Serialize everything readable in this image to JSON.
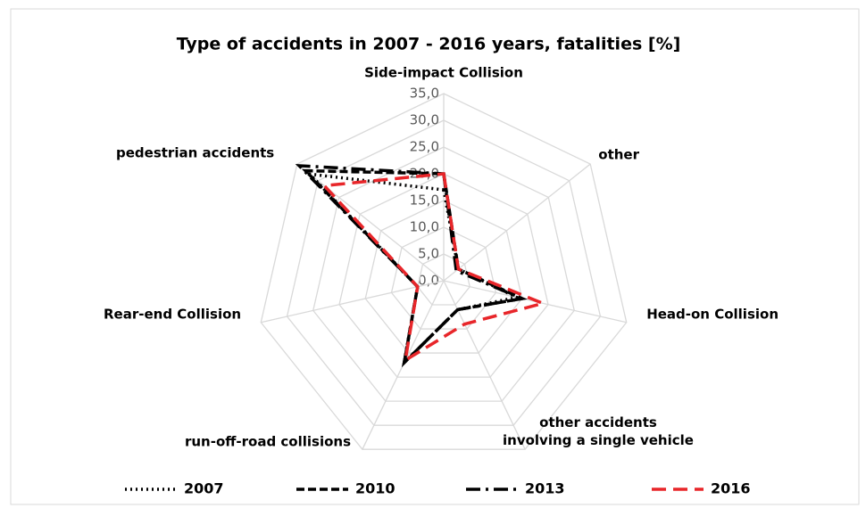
{
  "chart_data": {
    "type": "radar",
    "title": "Type of accidents in 2007 - 2016 years, fatalities [%]",
    "categories": [
      "Side-impact Collision",
      "other",
      "Head-on Collision",
      "other accidents involving a single vehicle",
      "run-off-road collisions",
      "Rear-end Collision",
      "pedestrian accidents"
    ],
    "ylim": [
      0,
      35
    ],
    "yticks": [
      {
        "value": 0,
        "label": "0,0"
      },
      {
        "value": 5,
        "label": "5,0"
      },
      {
        "value": 10,
        "label": "10,0"
      },
      {
        "value": 15,
        "label": "15,0"
      },
      {
        "value": 20,
        "label": "20,0"
      },
      {
        "value": 25,
        "label": "25,0"
      },
      {
        "value": 30,
        "label": "30,0"
      },
      {
        "value": 35,
        "label": "35,0"
      }
    ],
    "grid": true,
    "legend": "bottom",
    "series": [
      {
        "name": "2007",
        "color": "#000000",
        "dash": "dotted",
        "values": [
          17,
          3.5,
          14,
          6,
          17,
          5,
          32
        ]
      },
      {
        "name": "2010",
        "color": "#000000",
        "dash": "dashed",
        "values": [
          20,
          3.5,
          15,
          6,
          17,
          5,
          33
        ]
      },
      {
        "name": "2013",
        "color": "#000000",
        "dash": "longdashdot",
        "values": [
          20,
          3,
          15,
          6,
          17,
          5,
          34.5
        ]
      },
      {
        "name": "2016",
        "color": "#e8262a",
        "dash": "longdash",
        "values": [
          20,
          3.5,
          19,
          9,
          16.5,
          5,
          28.5
        ]
      }
    ]
  }
}
